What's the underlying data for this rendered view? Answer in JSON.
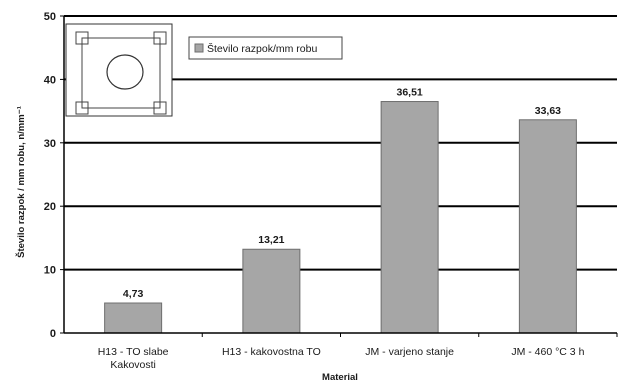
{
  "chart_data": {
    "type": "bar",
    "categories": [
      [
        "H13 - TO slabe",
        "Kakovosti"
      ],
      [
        "H13 - kakovostna TO"
      ],
      [
        "JM - varjeno stanje"
      ],
      [
        "JM - 460 °C 3 h"
      ]
    ],
    "series": [
      {
        "name": "Število razpok/mm robu",
        "values": [
          4.73,
          13.21,
          36.51,
          33.63
        ]
      }
    ],
    "data_labels": [
      "4,73",
      "13,21",
      "36,51",
      "33,63"
    ],
    "xlabel": "Material",
    "ylabel": "Število razpok / mm robu, n/mm⁻¹",
    "ylim": [
      0,
      50
    ],
    "yticks": [
      0,
      10,
      20,
      30,
      40,
      50
    ],
    "grid": "horizontal",
    "legend_position": "top-left",
    "bar_color": "#a6a6a6",
    "bar_edge_color": "#6e6e6e"
  }
}
